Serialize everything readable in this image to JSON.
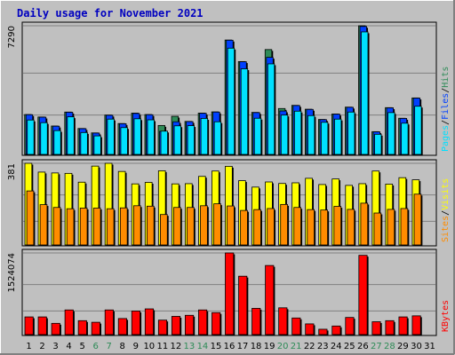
{
  "title": "Daily usage for November 2021",
  "colors": {
    "background": "#c0c0c0",
    "title": "#0000c0",
    "hits": "#2e8b57",
    "files": "#0040ff",
    "pages": "#00e0ff",
    "visits": "#ffff00",
    "sites": "#ff8c00",
    "kbytes": "#ff0000",
    "weekend_label": "#2e8b57",
    "weekday_label": "#000000"
  },
  "chart_data": [
    {
      "type": "bar",
      "panel": "top",
      "ytick_label": "7290",
      "ylim": [
        0,
        7290
      ],
      "legend": [
        "Pages",
        "Files",
        "Hits"
      ],
      "categories": [
        "1",
        "2",
        "3",
        "4",
        "5",
        "6",
        "7",
        "8",
        "9",
        "10",
        "11",
        "12",
        "13",
        "14",
        "15",
        "16",
        "17",
        "18",
        "19",
        "20",
        "21",
        "22",
        "23",
        "24",
        "25",
        "26",
        "27",
        "28",
        "29",
        "30",
        "31"
      ],
      "series": [
        {
          "name": "Hits",
          "values": [
            2260,
            2120,
            1610,
            2400,
            1470,
            1220,
            2230,
            1750,
            2340,
            2260,
            1640,
            2160,
            1870,
            2340,
            2410,
            6480,
            5260,
            2380,
            5940,
            2600,
            2780,
            2560,
            1980,
            2290,
            2680,
            7290,
            1290,
            2650,
            2050,
            3200,
            0
          ]
        },
        {
          "name": "Files",
          "values": [
            2250,
            2110,
            1600,
            2390,
            1460,
            1210,
            2220,
            1740,
            2320,
            2250,
            1310,
            1850,
            1860,
            2330,
            2400,
            6470,
            5250,
            2370,
            5500,
            2460,
            2770,
            2550,
            1970,
            2280,
            2670,
            7250,
            1280,
            2640,
            2040,
            3190,
            0
          ]
        },
        {
          "name": "Pages",
          "values": [
            1950,
            1800,
            1350,
            2130,
            1240,
            1050,
            2000,
            1520,
            2020,
            1960,
            1320,
            1620,
            1630,
            2040,
            1850,
            6020,
            4850,
            2050,
            5130,
            2230,
            2450,
            2200,
            1820,
            2000,
            2400,
            6940,
            1140,
            2370,
            1770,
            2730,
            0
          ]
        }
      ]
    },
    {
      "type": "bar",
      "panel": "middle",
      "ytick_label": "381",
      "ylim": [
        0,
        381
      ],
      "legend": [
        "Sites",
        "Visits"
      ],
      "categories": [
        "1",
        "2",
        "3",
        "4",
        "5",
        "6",
        "7",
        "8",
        "9",
        "10",
        "11",
        "12",
        "13",
        "14",
        "15",
        "16",
        "17",
        "18",
        "19",
        "20",
        "21",
        "22",
        "23",
        "24",
        "25",
        "26",
        "27",
        "28",
        "29",
        "30",
        "31"
      ],
      "series": [
        {
          "name": "Visits",
          "values": [
            381,
            340,
            336,
            334,
            293,
            368,
            381,
            343,
            285,
            292,
            346,
            285,
            286,
            320,
            345,
            367,
            300,
            270,
            294,
            287,
            290,
            311,
            282,
            308,
            278,
            286,
            345,
            284,
            314,
            304,
            0
          ]
        },
        {
          "name": "Sites",
          "values": [
            252,
            188,
            175,
            169,
            172,
            172,
            169,
            173,
            183,
            181,
            142,
            175,
            175,
            183,
            192,
            182,
            161,
            165,
            170,
            189,
            175,
            165,
            163,
            180,
            166,
            195,
            149,
            166,
            170,
            237,
            0
          ]
        }
      ]
    },
    {
      "type": "bar",
      "panel": "bottom",
      "ytick_label": "1524074",
      "ylim": [
        0,
        1524074
      ],
      "legend": [
        "KBytes"
      ],
      "categories": [
        "1",
        "2",
        "3",
        "4",
        "5",
        "6",
        "7",
        "8",
        "9",
        "10",
        "11",
        "12",
        "13",
        "14",
        "15",
        "16",
        "17",
        "18",
        "19",
        "20",
        "21",
        "22",
        "23",
        "24",
        "25",
        "26",
        "27",
        "28",
        "29",
        "30",
        "31"
      ],
      "series": [
        {
          "name": "KBytes",
          "values": [
            330000,
            330000,
            210000,
            460000,
            260000,
            230000,
            460000,
            300000,
            440000,
            480000,
            270000,
            340000,
            360000,
            460000,
            410000,
            1524074,
            1090000,
            490000,
            1290000,
            500000,
            310000,
            200000,
            100000,
            160000,
            320000,
            1480000,
            240000,
            260000,
            330000,
            350000,
            0
          ]
        }
      ]
    }
  ],
  "weekend_days": [
    6,
    7,
    13,
    14,
    20,
    21,
    27,
    28
  ]
}
